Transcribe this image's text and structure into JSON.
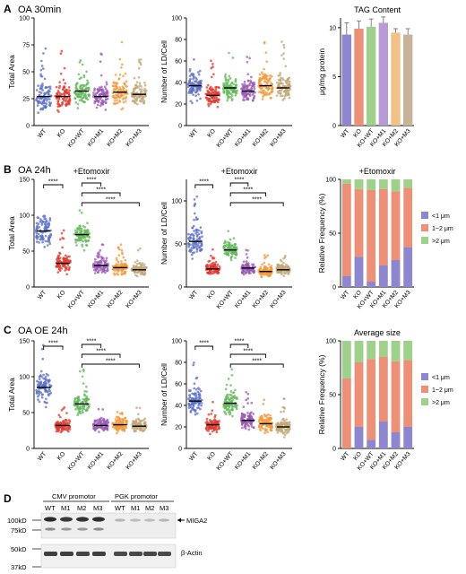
{
  "panels": {
    "A": {
      "letter": "A",
      "title": "OA 30min"
    },
    "B": {
      "letter": "B",
      "title": "OA 24h"
    },
    "C": {
      "letter": "C",
      "title": "OA OE 24h"
    },
    "D": {
      "letter": "D"
    }
  },
  "colors": {
    "WT": "#5b6fc7",
    "KO": "#e03a2f",
    "KO+WT": "#62b85a",
    "KO+M1": "#9b59b6",
    "KO+M2": "#f09a3e",
    "KO+M3": "#c2a678",
    "bar_lt1": "#8e86cf",
    "bar_1to2": "#ec9078",
    "bar_gt2": "#9fd08c"
  },
  "chart_data": [
    {
      "id": "A1",
      "type": "scatter",
      "panel": "A",
      "ylabel": "Total Area",
      "title": "",
      "ylim": [
        0,
        100
      ],
      "yticks": [
        0,
        25,
        50,
        75,
        100
      ],
      "categories": [
        "WT",
        "KO",
        "KO+WT",
        "KO+M1",
        "KO+M2",
        "KO+M3"
      ],
      "medians": [
        27,
        27,
        32,
        27,
        31,
        29
      ],
      "spread": [
        [
          8,
          80
        ],
        [
          8,
          72
        ],
        [
          10,
          78
        ],
        [
          7,
          72
        ],
        [
          8,
          85
        ],
        [
          8,
          70
        ]
      ],
      "significance": []
    },
    {
      "id": "A2",
      "type": "scatter",
      "panel": "A",
      "ylabel": "Number of LD/Cell",
      "title": "",
      "ylim": [
        0,
        100
      ],
      "yticks": [
        0,
        20,
        40,
        60,
        80,
        100
      ],
      "categories": [
        "WT",
        "KO",
        "KO+WT",
        "KO+M1",
        "KO+M2",
        "KO+M3"
      ],
      "medians": [
        37,
        28,
        35,
        32,
        37,
        35
      ],
      "spread": [
        [
          10,
          80
        ],
        [
          8,
          65
        ],
        [
          10,
          75
        ],
        [
          8,
          65
        ],
        [
          10,
          80
        ],
        [
          10,
          78
        ]
      ],
      "significance": []
    },
    {
      "id": "A3",
      "type": "bar",
      "panel": "A",
      "title": "TAG Content",
      "ylabel": "μg/mg protein",
      "ylim": [
        0,
        11
      ],
      "yticks": [
        0,
        5,
        10
      ],
      "categories": [
        "WT",
        "KO",
        "KO+WT",
        "KO+M1",
        "KO+M2",
        "KO+M3"
      ],
      "values": [
        9.3,
        9.9,
        10.1,
        10.5,
        9.5,
        9.3
      ],
      "errors": [
        1.2,
        0.8,
        0.8,
        0.6,
        0.4,
        0.6
      ],
      "bar_colors": [
        "#8e86cf",
        "#ec9078",
        "#9fd08c",
        "#b79ad6",
        "#f2c187",
        "#c9b29a"
      ]
    },
    {
      "id": "B1",
      "type": "scatter",
      "panel": "B",
      "ylabel": "Total Area",
      "title": "+Etomoxir",
      "ylim": [
        0,
        150
      ],
      "yticks": [
        0,
        50,
        100,
        150
      ],
      "categories": [
        "WT",
        "KO",
        "KO+WT",
        "KO+M1",
        "KO+M2",
        "KO+M3"
      ],
      "medians": [
        78,
        33,
        73,
        30,
        27,
        24
      ],
      "spread": [
        [
          20,
          140
        ],
        [
          5,
          80
        ],
        [
          25,
          115
        ],
        [
          5,
          65
        ],
        [
          5,
          60
        ],
        [
          5,
          55
        ]
      ],
      "significance": [
        {
          "from": 0,
          "to": 1,
          "label": "****",
          "level": 0
        },
        {
          "from": 2,
          "to": 3,
          "label": "****",
          "level": 0
        },
        {
          "from": 2,
          "to": 4,
          "label": "****",
          "level": 1
        },
        {
          "from": 2,
          "to": 5,
          "label": "****",
          "level": 2
        }
      ]
    },
    {
      "id": "B2",
      "type": "scatter",
      "panel": "B",
      "ylabel": "Number of LD/Cell",
      "title": "+Etomoxir",
      "ylim": [
        0,
        125
      ],
      "yticks": [
        0,
        50,
        100
      ],
      "categories": [
        "WT",
        "KO",
        "KO+WT",
        "KO+M1",
        "KO+M2",
        "KO+M3"
      ],
      "medians": [
        53,
        21,
        43,
        22,
        18,
        20
      ],
      "spread": [
        [
          12,
          110
        ],
        [
          5,
          45
        ],
        [
          15,
          75
        ],
        [
          5,
          45
        ],
        [
          4,
          40
        ],
        [
          4,
          42
        ]
      ],
      "significance": [
        {
          "from": 0,
          "to": 1,
          "label": "****",
          "level": 0
        },
        {
          "from": 2,
          "to": 3,
          "label": "****",
          "level": 0
        },
        {
          "from": 2,
          "to": 4,
          "label": "****",
          "level": 1
        },
        {
          "from": 2,
          "to": 5,
          "label": "****",
          "level": 2
        }
      ]
    },
    {
      "id": "B3",
      "type": "bar",
      "panel": "B",
      "title": "+Etomoxir",
      "ylabel": "Relative Frequency (%)",
      "ylim": [
        0,
        100
      ],
      "yticks": [
        0,
        50,
        100
      ],
      "categories": [
        "WT",
        "KO",
        "KO+WT",
        "KO+M1",
        "KO+M2",
        "KO+M3"
      ],
      "series": [
        {
          "name": "<1 μm",
          "values": [
            10,
            28,
            5,
            20,
            25,
            37
          ]
        },
        {
          "name": "1~2 μm",
          "values": [
            86,
            63,
            85,
            71,
            64,
            55
          ]
        },
        {
          "name": ">2 μm",
          "values": [
            4,
            9,
            10,
            9,
            11,
            8
          ]
        }
      ],
      "legend_position": "right"
    },
    {
      "id": "C1",
      "type": "scatter",
      "panel": "C",
      "ylabel": "Total Area",
      "title": "",
      "ylim": [
        0,
        150
      ],
      "yticks": [
        0,
        50,
        100,
        150
      ],
      "categories": [
        "WT",
        "KO",
        "KO+WT",
        "KO+M1",
        "KO+M2",
        "KO+M3"
      ],
      "medians": [
        85,
        32,
        62,
        32,
        33,
        31
      ],
      "spread": [
        [
          30,
          145
        ],
        [
          5,
          60
        ],
        [
          20,
          110
        ],
        [
          5,
          60
        ],
        [
          5,
          60
        ],
        [
          5,
          58
        ]
      ],
      "significance": [
        {
          "from": 0,
          "to": 1,
          "label": "****",
          "level": 0
        },
        {
          "from": 2,
          "to": 3,
          "label": "****",
          "level": 0
        },
        {
          "from": 2,
          "to": 4,
          "label": "****",
          "level": 1
        },
        {
          "from": 2,
          "to": 5,
          "label": "****",
          "level": 2
        }
      ]
    },
    {
      "id": "C2",
      "type": "scatter",
      "panel": "C",
      "ylabel": "Number of LD/Cell",
      "title": "",
      "ylim": [
        0,
        100
      ],
      "yticks": [
        0,
        20,
        40,
        60,
        80,
        100
      ],
      "categories": [
        "WT",
        "KO",
        "KO+WT",
        "KO+M1",
        "KO+M2",
        "KO+M3"
      ],
      "medians": [
        44,
        22,
        42,
        26,
        23,
        20
      ],
      "spread": [
        [
          15,
          80
        ],
        [
          5,
          45
        ],
        [
          15,
          75
        ],
        [
          5,
          55
        ],
        [
          5,
          50
        ],
        [
          5,
          50
        ]
      ],
      "significance": [
        {
          "from": 0,
          "to": 1,
          "label": "****",
          "level": 0
        },
        {
          "from": 2,
          "to": 3,
          "label": "****",
          "level": 0
        },
        {
          "from": 2,
          "to": 4,
          "label": "****",
          "level": 1
        },
        {
          "from": 2,
          "to": 5,
          "label": "****",
          "level": 2
        }
      ]
    },
    {
      "id": "C3",
      "type": "bar",
      "panel": "C",
      "title": "Average size",
      "ylabel": "Relative Frequency (%)",
      "ylim": [
        0,
        100
      ],
      "yticks": [
        0,
        50,
        100
      ],
      "categories": [
        "WT",
        "KO",
        "KO+WT",
        "KO+M1",
        "KO+M2",
        "KO+M3"
      ],
      "series": [
        {
          "name": "<1 μm",
          "values": [
            0,
            20,
            8,
            25,
            15,
            20
          ]
        },
        {
          "name": "1~2 μm",
          "values": [
            65,
            60,
            75,
            60,
            66,
            62
          ]
        },
        {
          "name": ">2 μm",
          "values": [
            35,
            20,
            17,
            15,
            19,
            18
          ]
        }
      ],
      "legend_position": "right"
    }
  ],
  "blot": {
    "cmv_label": "CMV promotor",
    "pgk_label": "PGK promotor",
    "lanes": [
      "WT",
      "M1",
      "M2",
      "M3"
    ],
    "mw_top": [
      "100kD",
      "75kD"
    ],
    "mw_bottom": [
      "50kD",
      "37kD"
    ],
    "target": "MIGA2",
    "loading": "β-Actin"
  }
}
